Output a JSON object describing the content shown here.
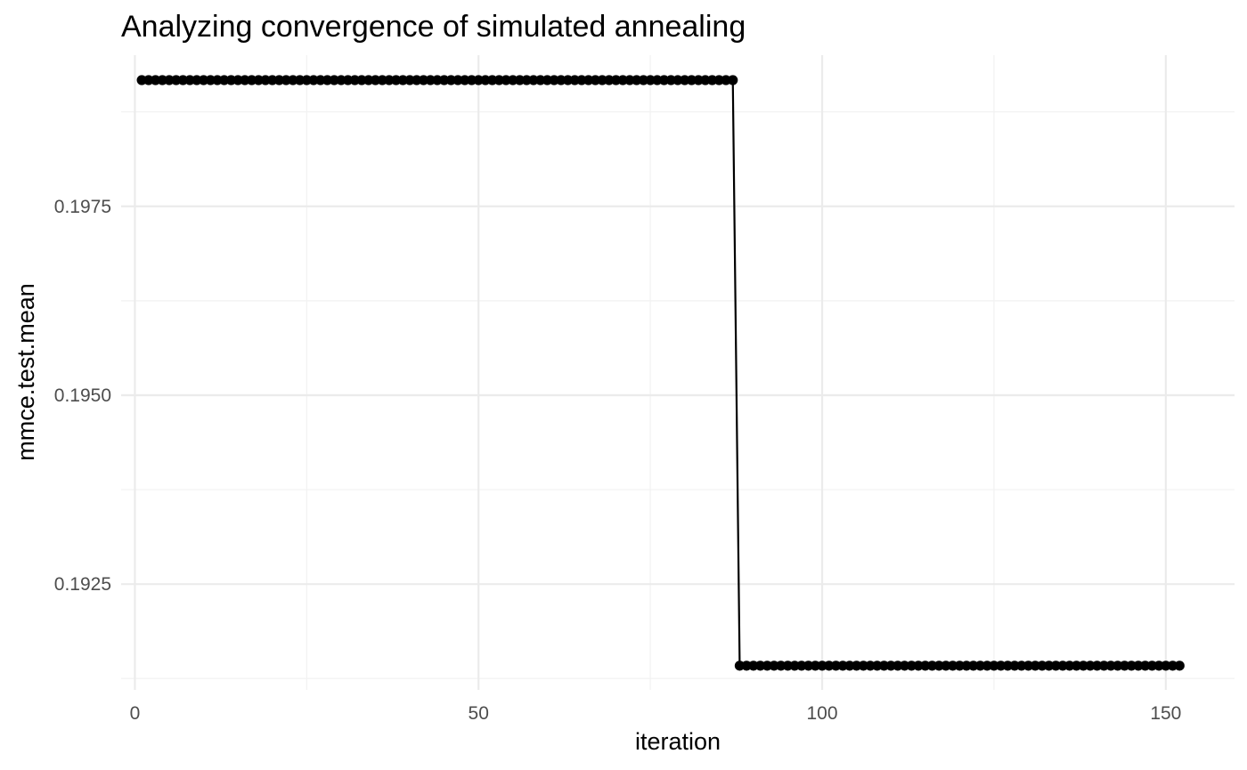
{
  "chart_data": {
    "type": "line",
    "title": "Analyzing convergence of simulated annealing",
    "xlabel": "iteration",
    "ylabel": "mmce.test.mean",
    "xlim": [
      -2,
      160
    ],
    "ylim": [
      0.1911,
      0.1995
    ],
    "x_ticks": [
      0,
      50,
      100,
      150
    ],
    "x_tick_labels": [
      "0",
      "50",
      "100",
      "150"
    ],
    "x_minor_ticks": [
      25,
      75,
      125
    ],
    "y_ticks": [
      0.1925,
      0.195,
      0.1975
    ],
    "y_tick_labels": [
      "0.1925",
      "0.1950",
      "0.1975"
    ],
    "y_minor_ticks": [
      0.19125,
      0.19375,
      0.19625,
      0.19875
    ],
    "grid": true,
    "legend": "none",
    "series": [
      {
        "segments": [
          {
            "x_from": 1,
            "x_to": 87,
            "value": 0.19917
          },
          {
            "x_from": 88,
            "x_to": 152,
            "value": 0.19142
          }
        ],
        "color": "#000000"
      }
    ]
  }
}
